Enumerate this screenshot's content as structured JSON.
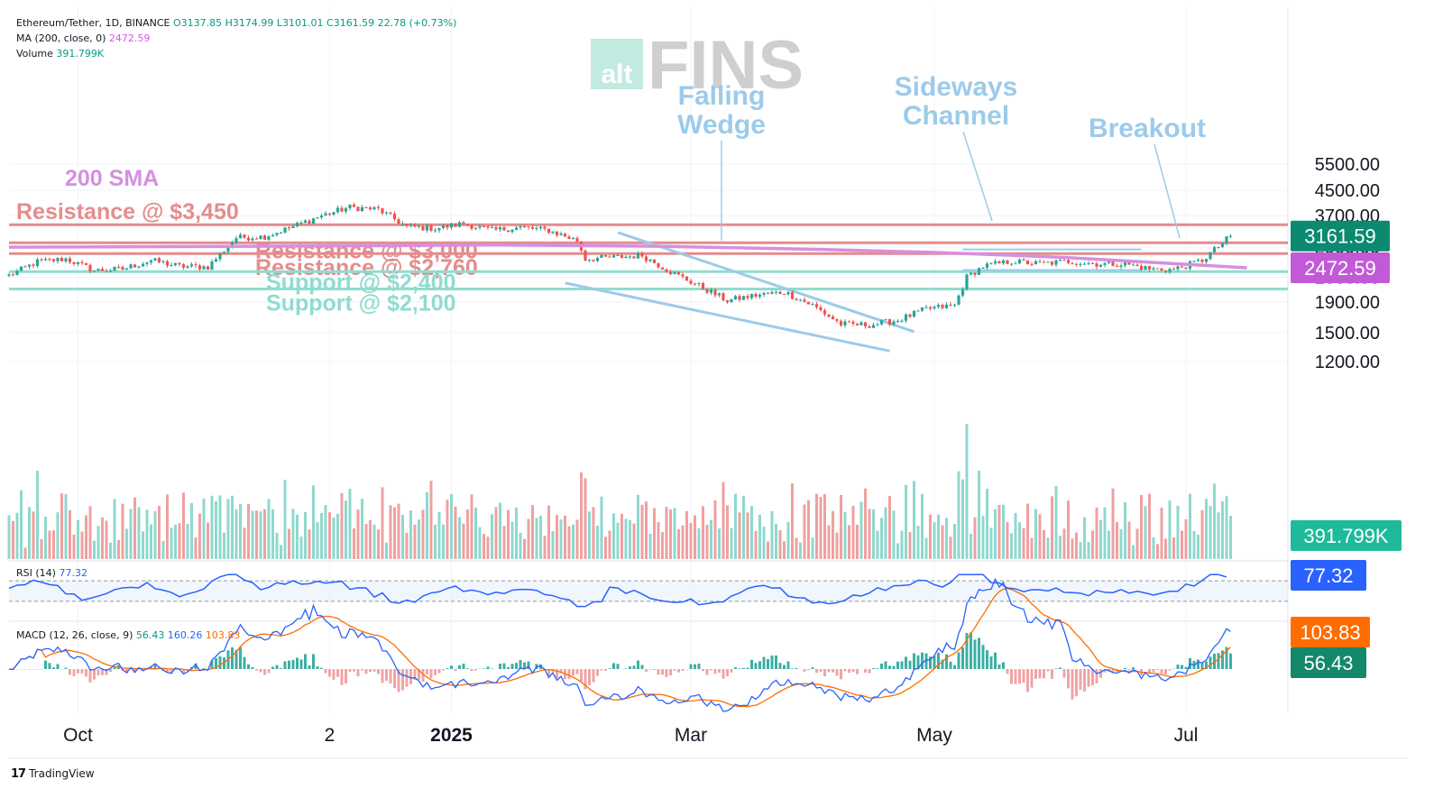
{
  "header": {
    "symbol": "Ethereum/Tether, 1D, BINANCE",
    "ohlc": "O3137.85 H3174.99 L3101.01 C3161.59 22.78 (+0.73%)",
    "ma_label": "MA (200, close, 0)",
    "ma_value": "2472.59",
    "volume_label": "Volume",
    "volume_value": "391.799K"
  },
  "watermark": {
    "left": "alt",
    "right": "FINS"
  },
  "chart_data": [
    {
      "type": "candlestick",
      "title": "Ethereum/Tether, 1D, BINANCE",
      "y_scale": "log",
      "ylim": [
        1250,
        5600
      ],
      "y_ticks": [
        "5500.00",
        "4500.00",
        "3700.00",
        "2900.00",
        "2300.00",
        "1900.00",
        "1500.00",
        "1200.00"
      ],
      "y_tick_values": [
        5500,
        4500,
        3700,
        2900,
        2300,
        1900,
        1500,
        1200
      ],
      "x_ticks": [
        "Oct",
        "2",
        "2025",
        "Mar",
        "May",
        "Jul"
      ],
      "price_path": {
        "dates": [
          "2024-09-14",
          "2024-09-21",
          "2024-09-28",
          "2024-10-05",
          "2024-10-12",
          "2024-10-19",
          "2024-10-26",
          "2024-11-02",
          "2024-11-09",
          "2024-11-16",
          "2024-11-23",
          "2024-11-30",
          "2024-12-07",
          "2024-12-14",
          "2024-12-21",
          "2024-12-28",
          "2025-01-04",
          "2025-01-11",
          "2025-01-18",
          "2025-01-25",
          "2025-02-01",
          "2025-02-03",
          "2025-02-10",
          "2025-02-17",
          "2025-02-24",
          "2025-03-03",
          "2025-03-10",
          "2025-03-17",
          "2025-03-24",
          "2025-03-31",
          "2025-04-07",
          "2025-04-14",
          "2025-04-21",
          "2025-04-28",
          "2025-05-05",
          "2025-05-08",
          "2025-05-12",
          "2025-05-19",
          "2025-05-26",
          "2025-06-02",
          "2025-06-09",
          "2025-06-16",
          "2025-06-22",
          "2025-06-28",
          "2025-07-05",
          "2025-07-12"
        ],
        "close": [
          2330,
          2590,
          2650,
          2420,
          2450,
          2620,
          2500,
          2490,
          3120,
          3150,
          3400,
          3700,
          3950,
          3880,
          3400,
          3350,
          3480,
          3300,
          3380,
          3300,
          3050,
          2650,
          2680,
          2720,
          2400,
          2150,
          1920,
          2000,
          2050,
          1850,
          1600,
          1590,
          1650,
          1800,
          1850,
          2300,
          2500,
          2600,
          2550,
          2600,
          2550,
          2550,
          2450,
          2440,
          2620,
          3161.59
        ]
      },
      "ma200": {
        "label": "200 SMA",
        "value": 2472.59
      },
      "last_price": "3161.59",
      "ma_price": "2472.59",
      "levels": [
        {
          "name": "Resistance @ $3,450",
          "value": 3450,
          "kind": "resistance"
        },
        {
          "name": "Resistance @ $3,000",
          "value": 3000,
          "kind": "resistance"
        },
        {
          "name": "Resistance @ $2,760",
          "value": 2760,
          "kind": "resistance"
        },
        {
          "name": "Support @ $2,400",
          "value": 2400,
          "kind": "support"
        },
        {
          "name": "Support @ $2,100",
          "value": 2100,
          "kind": "support"
        }
      ],
      "annotations": [
        {
          "text": "Falling\nWedge"
        },
        {
          "text": "Sideways\nChannel"
        },
        {
          "text": "Breakout"
        }
      ],
      "colors": {
        "up": "#26a69a",
        "down": "#ef5350",
        "ma": "#d58fe0",
        "resistance": "#e58c8c",
        "support": "#8fdcd0",
        "annotation": "#9ccbea"
      }
    },
    {
      "type": "bar",
      "title": "Volume",
      "last_value": "391.799K"
    },
    {
      "type": "line",
      "title": "RSI (14)",
      "value": "77.32",
      "ylim": [
        0,
        100
      ],
      "bands": [
        30,
        70
      ]
    },
    {
      "type": "line",
      "title": "MACD (12, 26, close, 9)",
      "values": {
        "macd": "56.43",
        "signal": "160.26",
        "histogram": "103.83"
      },
      "axis_values": [
        "103.83",
        "56.43"
      ]
    }
  ],
  "footer": {
    "brand": "TradingView"
  }
}
